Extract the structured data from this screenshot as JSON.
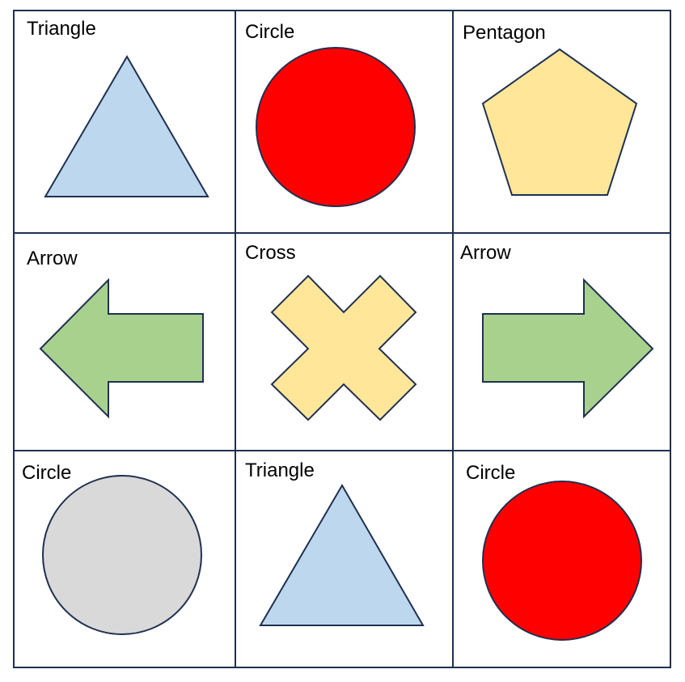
{
  "colors": {
    "border": "#1f3050",
    "light_blue": "#bdd7ee",
    "red": "#ff0000",
    "light_yellow": "#ffe699",
    "light_green": "#a9d18e",
    "light_gray": "#d9d9d9"
  },
  "cells": [
    {
      "label": "Triangle",
      "shape": "triangle-up",
      "fill": "#bdd7ee"
    },
    {
      "label": "Circle",
      "shape": "circle",
      "fill": "#ff0000"
    },
    {
      "label": "Pentagon",
      "shape": "pentagon",
      "fill": "#ffe699"
    },
    {
      "label": "Arrow",
      "shape": "arrow-left",
      "fill": "#a9d18e"
    },
    {
      "label": "Cross",
      "shape": "cross",
      "fill": "#ffe699"
    },
    {
      "label": "Arrow",
      "shape": "arrow-right",
      "fill": "#a9d18e"
    },
    {
      "label": "Circle",
      "shape": "circle",
      "fill": "#d9d9d9"
    },
    {
      "label": "Triangle",
      "shape": "triangle-up",
      "fill": "#bdd7ee"
    },
    {
      "label": "Circle",
      "shape": "circle",
      "fill": "#ff0000"
    }
  ]
}
